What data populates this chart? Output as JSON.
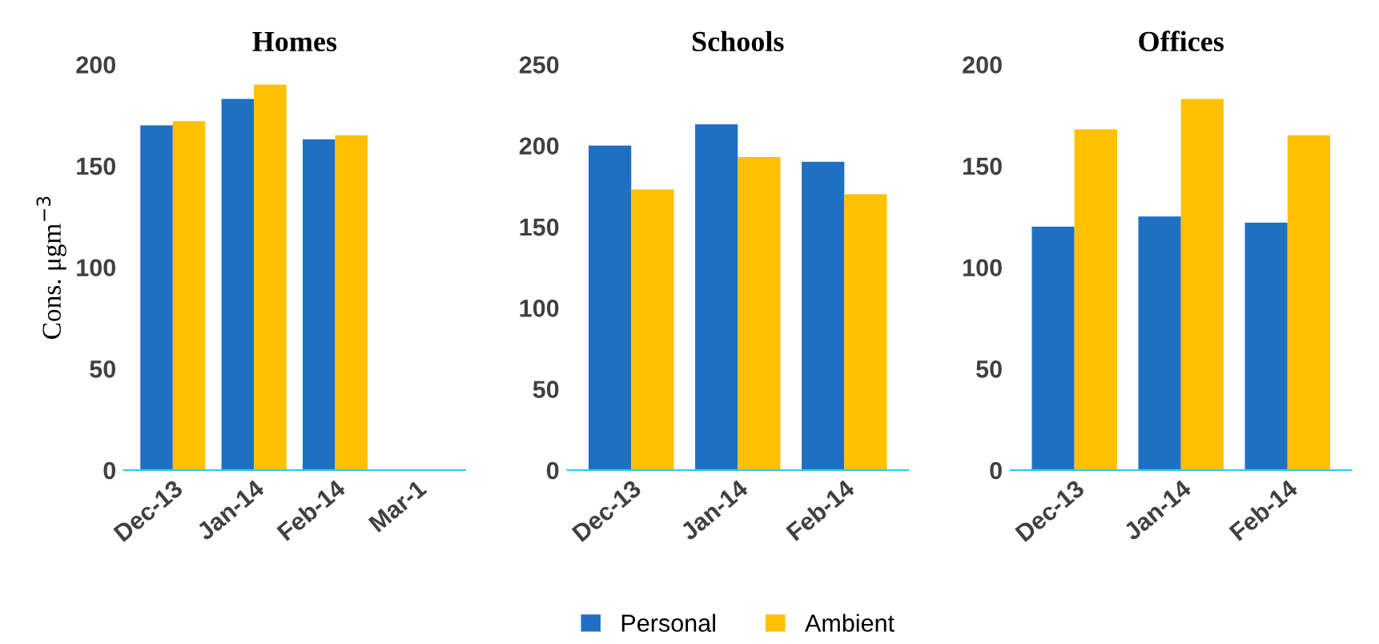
{
  "chart_data": [
    {
      "type": "bar",
      "title": "Homes",
      "ylabel": "Cons. μgm$^{−3}$",
      "categories": [
        "Dec-13",
        "Jan-14",
        "Feb-14",
        "Mar-1"
      ],
      "ylim": [
        0,
        200
      ],
      "yticks": [
        0,
        50,
        100,
        150,
        200
      ],
      "grid": false,
      "series": [
        {
          "color": "#1f6fc5",
          "values": [
            170,
            183,
            163,
            null
          ]
        },
        {
          "color": "#ffc000",
          "values": [
            172,
            190,
            165,
            null
          ]
        }
      ]
    },
    {
      "type": "bar",
      "title": "Schools",
      "categories": [
        "Dec-13",
        "Jan-14",
        "Feb-14"
      ],
      "ylim": [
        0,
        250
      ],
      "yticks": [
        0,
        50,
        100,
        150,
        200,
        250
      ],
      "grid": false,
      "legend": "bottom",
      "series": [
        {
          "name": "Personal",
          "color": "#1f6fc5",
          "values": [
            200,
            213,
            190
          ]
        },
        {
          "name": "Ambient",
          "color": "#ffc000",
          "values": [
            173,
            193,
            170
          ]
        }
      ]
    },
    {
      "type": "bar",
      "title": "Offices",
      "categories": [
        "Dec-13",
        "Jan-14",
        "Feb-14"
      ],
      "ylim": [
        0,
        200
      ],
      "yticks": [
        0,
        50,
        100,
        150,
        200
      ],
      "grid": false,
      "series": [
        {
          "color": "#1f6fc5",
          "values": [
            120,
            125,
            122
          ]
        },
        {
          "color": "#ffc000",
          "values": [
            168,
            183,
            165
          ]
        }
      ]
    }
  ]
}
